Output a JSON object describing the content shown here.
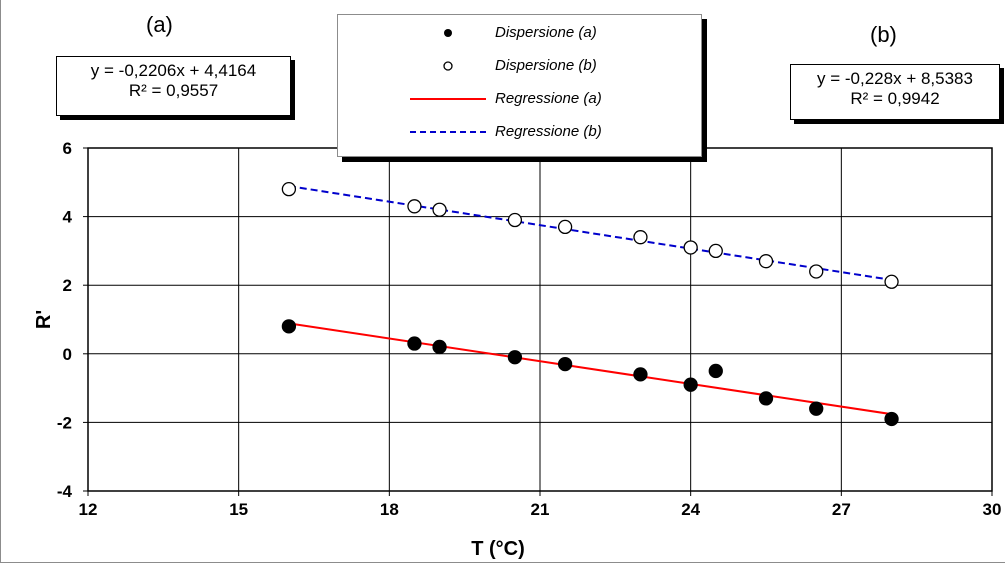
{
  "chart_data": {
    "type": "scatter",
    "xlabel": "T (°C)",
    "ylabel": "R'",
    "xlim": [
      12,
      30
    ],
    "ylim": [
      -4,
      6
    ],
    "x_ticks": [
      "12",
      "15",
      "18",
      "21",
      "24",
      "27",
      "30"
    ],
    "y_ticks": [
      "-4",
      "-2",
      "0",
      "2",
      "4",
      "6"
    ],
    "grid": true,
    "legend_position": "top-center",
    "panel_labels": [
      "(a)",
      "(b)"
    ],
    "series": [
      {
        "name": "Dispersione (a)",
        "kind": "scatter",
        "marker": "filled-circle",
        "color": "#000000",
        "x": [
          16,
          18.5,
          19,
          20.5,
          21.5,
          23,
          24,
          24.5,
          25.5,
          26.5,
          28
        ],
        "y": [
          0.8,
          0.3,
          0.2,
          -0.1,
          -0.3,
          -0.6,
          -0.9,
          -0.5,
          -1.3,
          -1.6,
          -1.9
        ]
      },
      {
        "name": "Dispersione (b)",
        "kind": "scatter",
        "marker": "open-circle",
        "color": "#000000",
        "x": [
          16,
          18.5,
          19,
          20.5,
          21.5,
          23,
          24,
          24.5,
          25.5,
          26.5,
          28
        ],
        "y": [
          4.8,
          4.3,
          4.2,
          3.9,
          3.7,
          3.4,
          3.1,
          3.0,
          2.7,
          2.4,
          2.1
        ]
      },
      {
        "name": "Regressione (a)",
        "kind": "line",
        "style": "solid",
        "color": "#ff0000",
        "slope": -0.2206,
        "intercept": 4.4164,
        "x": [
          16,
          28
        ]
      },
      {
        "name": "Regressione (b)",
        "kind": "line",
        "style": "dashed",
        "color": "#0000cc",
        "slope": -0.228,
        "intercept": 8.5383,
        "x": [
          16,
          28
        ]
      }
    ],
    "equations": [
      {
        "line1": "y = -0,2206x + 4,4164",
        "line2": "R² = 0,9557"
      },
      {
        "line1": "y = -0,228x + 8,5383",
        "line2": "R² = 0,9942"
      }
    ]
  }
}
